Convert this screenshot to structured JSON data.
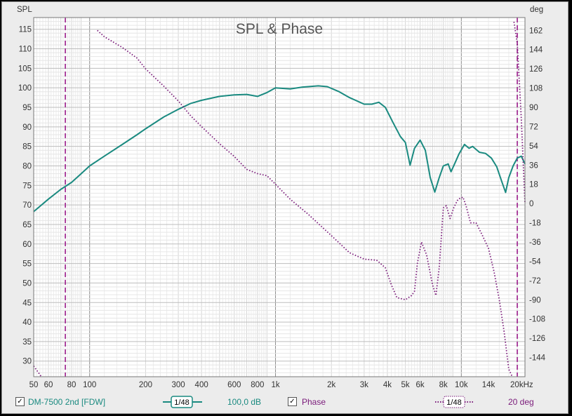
{
  "chart_data": {
    "type": "line",
    "title": "SPL & Phase",
    "left_axis_label": "SPL",
    "right_axis_label": "deg",
    "x_scale": "log",
    "xlim": [
      50,
      22000
    ],
    "ylim_left": [
      26,
      118
    ],
    "ylim_right": [
      -162,
      174
    ],
    "x_tick_labels": [
      {
        "v": 50,
        "t": "50"
      },
      {
        "v": 60,
        "t": "60"
      },
      {
        "v": 80,
        "t": "80"
      },
      {
        "v": 100,
        "t": "100"
      },
      {
        "v": 200,
        "t": "200"
      },
      {
        "v": 300,
        "t": "300"
      },
      {
        "v": 400,
        "t": "400"
      },
      {
        "v": 600,
        "t": "600"
      },
      {
        "v": 800,
        "t": "800"
      },
      {
        "v": 1000,
        "t": "1k"
      },
      {
        "v": 2000,
        "t": "2k"
      },
      {
        "v": 3000,
        "t": "3k"
      },
      {
        "v": 4000,
        "t": "4k"
      },
      {
        "v": 5000,
        "t": "5k"
      },
      {
        "v": 6000,
        "t": "6k"
      },
      {
        "v": 8000,
        "t": "8k"
      },
      {
        "v": 10000,
        "t": "10k"
      },
      {
        "v": 14000,
        "t": "14k"
      },
      {
        "v": 20000,
        "t": "20kHz"
      }
    ],
    "y_ticks_left": [
      30,
      35,
      40,
      45,
      50,
      55,
      60,
      65,
      70,
      75,
      80,
      85,
      90,
      95,
      100,
      105,
      110,
      115
    ],
    "y_ticks_right": [
      -144,
      -126,
      -108,
      -90,
      -72,
      -54,
      -36,
      -18,
      0,
      18,
      36,
      54,
      72,
      90,
      108,
      126,
      144,
      162
    ],
    "markers_hz": [
      74,
      20000
    ],
    "grid": true,
    "series": [
      {
        "name": "DM-7500 2nd [FDW]",
        "axis": "left",
        "color": "#1a8a80",
        "points": [
          [
            50,
            68.3
          ],
          [
            60,
            71.5
          ],
          [
            70,
            74
          ],
          [
            80,
            75.8
          ],
          [
            90,
            78
          ],
          [
            100,
            80
          ],
          [
            120,
            82.5
          ],
          [
            150,
            85.5
          ],
          [
            180,
            88
          ],
          [
            200,
            89.5
          ],
          [
            250,
            92.5
          ],
          [
            300,
            94.5
          ],
          [
            350,
            96
          ],
          [
            400,
            96.8
          ],
          [
            500,
            97.8
          ],
          [
            600,
            98.2
          ],
          [
            700,
            98.3
          ],
          [
            800,
            97.8
          ],
          [
            900,
            98.8
          ],
          [
            1000,
            100
          ],
          [
            1200,
            99.7
          ],
          [
            1400,
            100.2
          ],
          [
            1700,
            100.5
          ],
          [
            1900,
            100.3
          ],
          [
            2200,
            99
          ],
          [
            2500,
            97.5
          ],
          [
            3000,
            95.8
          ],
          [
            3300,
            95.8
          ],
          [
            3600,
            96.3
          ],
          [
            3900,
            95
          ],
          [
            4300,
            91
          ],
          [
            4700,
            87.5
          ],
          [
            5000,
            86
          ],
          [
            5300,
            80.2
          ],
          [
            5600,
            84.5
          ],
          [
            6000,
            86.6
          ],
          [
            6400,
            84
          ],
          [
            6800,
            77
          ],
          [
            7200,
            73.3
          ],
          [
            7600,
            77
          ],
          [
            8000,
            80
          ],
          [
            8500,
            80.5
          ],
          [
            8800,
            78.5
          ],
          [
            9200,
            80.5
          ],
          [
            9700,
            83
          ],
          [
            10400,
            85.5
          ],
          [
            11000,
            84.5
          ],
          [
            11500,
            85
          ],
          [
            12500,
            83.5
          ],
          [
            13500,
            83.2
          ],
          [
            14500,
            82
          ],
          [
            15500,
            79.8
          ],
          [
            16500,
            76
          ],
          [
            17300,
            73.2
          ],
          [
            18000,
            77
          ],
          [
            19000,
            80
          ],
          [
            20000,
            82
          ],
          [
            21000,
            82.5
          ],
          [
            22000,
            80.5
          ]
        ]
      },
      {
        "name": "Phase",
        "axis": "right",
        "color": "#7a1a7a",
        "points": [
          [
            50,
            -152
          ],
          [
            55,
            -162
          ],
          [
            110,
            162
          ],
          [
            120,
            156
          ],
          [
            150,
            146
          ],
          [
            180,
            136
          ],
          [
            200,
            126
          ],
          [
            250,
            110
          ],
          [
            300,
            96
          ],
          [
            350,
            82
          ],
          [
            400,
            72
          ],
          [
            500,
            56
          ],
          [
            600,
            44
          ],
          [
            700,
            32
          ],
          [
            800,
            28
          ],
          [
            900,
            26
          ],
          [
            1000,
            18
          ],
          [
            1200,
            4
          ],
          [
            1500,
            -10
          ],
          [
            2000,
            -30
          ],
          [
            2500,
            -46
          ],
          [
            3000,
            -52
          ],
          [
            3500,
            -53
          ],
          [
            3900,
            -60
          ],
          [
            4200,
            -76
          ],
          [
            4500,
            -88
          ],
          [
            5000,
            -90
          ],
          [
            5400,
            -86
          ],
          [
            5600,
            -82
          ],
          [
            5800,
            -56
          ],
          [
            6100,
            -36
          ],
          [
            6500,
            -48
          ],
          [
            7000,
            -76
          ],
          [
            7300,
            -86
          ],
          [
            7600,
            -60
          ],
          [
            8000,
            -4
          ],
          [
            8300,
            -2
          ],
          [
            8700,
            -14
          ],
          [
            9100,
            -4
          ],
          [
            9600,
            4
          ],
          [
            10200,
            6
          ],
          [
            10600,
            -2
          ],
          [
            11200,
            -18
          ],
          [
            12000,
            -18
          ],
          [
            13000,
            -30
          ],
          [
            14000,
            -42
          ],
          [
            15000,
            -64
          ],
          [
            16000,
            -90
          ],
          [
            17000,
            -120
          ],
          [
            18000,
            -155
          ],
          [
            18800,
            -162
          ],
          [
            19200,
            170
          ],
          [
            20000,
            150
          ],
          [
            21000,
            80
          ],
          [
            22000,
            0
          ]
        ]
      }
    ]
  },
  "legend": {
    "spl_name": "DM-7500 2nd [FDW]",
    "spl_smoothing": "1/48",
    "spl_offset": "100,0 dB",
    "phase_name": "Phase",
    "phase_smoothing": "1/48",
    "phase_scale": "20 deg",
    "spl_checked": true,
    "phase_checked": true
  },
  "colors": {
    "spl": "#1a8a80",
    "phase": "#7a1a7a",
    "marker": "#9a1a8a",
    "plot_bg": "#ffffff",
    "grid_major": "#8c8c8c",
    "grid_minor": "#d6d6d6"
  }
}
